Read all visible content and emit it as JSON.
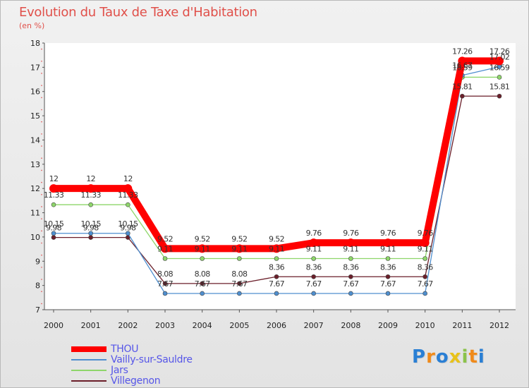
{
  "chart_data": {
    "type": "line",
    "title": "Evolution du Taux de Taxe d'Habitation",
    "ylabel": "(en %)",
    "xlabel": "",
    "categories": [
      "2000",
      "2001",
      "2002",
      "2003",
      "2004",
      "2005",
      "2006",
      "2007",
      "2008",
      "2009",
      "2010",
      "2011",
      "2012"
    ],
    "ylim": [
      7,
      18
    ],
    "yticks": [
      7,
      8,
      9,
      10,
      11,
      12,
      13,
      14,
      15,
      16,
      17,
      18
    ],
    "legend_position": "bottom-left",
    "series": [
      {
        "name": "THOU",
        "color": "#ff0000",
        "values": [
          12,
          12,
          12,
          9.52,
          9.52,
          9.52,
          9.52,
          9.76,
          9.76,
          9.76,
          9.76,
          17.26,
          17.26
        ],
        "labels": [
          "12",
          "12",
          "12",
          "9.52",
          "9.52",
          "9.52",
          "9.52",
          "9.76",
          "9.76",
          "9.76",
          "9.76",
          "17.26",
          "17.26"
        ]
      },
      {
        "name": "Vailly-sur-Sauldre",
        "color": "#4f8fcf",
        "values": [
          10.15,
          10.15,
          10.15,
          7.67,
          7.67,
          7.67,
          7.67,
          7.67,
          7.67,
          7.67,
          7.67,
          16.67,
          17.02
        ],
        "labels": [
          "10.15",
          "10.15",
          "10.15",
          "7.67",
          "7.67",
          "7.67",
          "7.67",
          "7.67",
          "7.67",
          "7.67",
          "7.67",
          "16.67",
          "17.02"
        ]
      },
      {
        "name": "Jars",
        "color": "#8ed66a",
        "values": [
          11.33,
          11.33,
          11.33,
          9.11,
          9.11,
          9.11,
          9.11,
          9.11,
          9.11,
          9.11,
          9.11,
          16.59,
          16.59
        ],
        "labels": [
          "11.33",
          "11.33",
          "11.33",
          "9.11",
          "9.11",
          "9.11",
          "9.11",
          "9.11",
          "9.11",
          "9.11",
          "9.11",
          "16.59",
          "16.59"
        ]
      },
      {
        "name": "Villegenon",
        "color": "#6b1f2a",
        "values": [
          9.98,
          9.98,
          9.98,
          8.08,
          8.08,
          8.08,
          8.36,
          8.36,
          8.36,
          8.36,
          8.36,
          15.81,
          15.81
        ],
        "labels": [
          "9.98",
          "9.98",
          "9.98",
          "8.08",
          "8.08",
          "8.08",
          "8.36",
          "8.36",
          "8.36",
          "8.36",
          "8.36",
          "15.81",
          "15.81"
        ]
      }
    ]
  },
  "logo": {
    "text": "Proxiti"
  }
}
